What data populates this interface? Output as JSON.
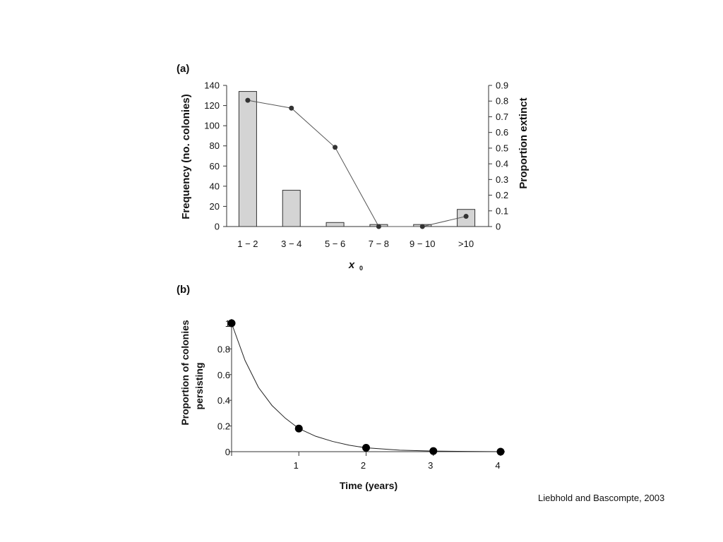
{
  "chart_data": [
    {
      "panel": "(a)",
      "type": "bar",
      "categories": [
        "1 − 2",
        "3 − 4",
        "5 − 6",
        "7 − 8",
        "9 − 10",
        ">10"
      ],
      "series": [
        {
          "name": "",
          "axis": "left",
          "type": "bar",
          "values": [
            134,
            36,
            4,
            2,
            2,
            17
          ]
        },
        {
          "name": "",
          "axis": "right",
          "type": "line",
          "values": [
            0.805,
            0.755,
            0.505,
            0.0,
            0.0,
            0.065
          ]
        }
      ],
      "xlabel": "x",
      "xlabel_sub": "0",
      "ylabel": "Frequency (no. colonies)",
      "y2label": "Proportion extinct",
      "ylim": [
        0,
        140
      ],
      "y2lim": [
        0,
        0.9
      ],
      "yticks": [
        0,
        20,
        40,
        60,
        80,
        100,
        120,
        140
      ],
      "y2ticks": [
        0,
        0.1,
        0.2,
        0.3,
        0.4,
        0.5,
        0.6,
        0.7,
        0.8,
        0.9
      ],
      "grid": false
    },
    {
      "panel": "(b)",
      "type": "scatter",
      "x": [
        0,
        1,
        2,
        3,
        4
      ],
      "y": [
        1.0,
        0.18,
        0.03,
        0.005,
        0.0
      ],
      "curve": {
        "x": [
          0,
          0.2,
          0.4,
          0.6,
          0.8,
          1,
          1.25,
          1.5,
          1.75,
          2,
          2.5,
          3,
          3.5,
          4
        ],
        "y": [
          1.0,
          0.71,
          0.5,
          0.36,
          0.26,
          0.18,
          0.12,
          0.08,
          0.05,
          0.03,
          0.012,
          0.005,
          0.002,
          0.0
        ]
      },
      "xlabel": "Time (years)",
      "ylabel": "Proportion of colonies\npersisting",
      "xlim": [
        0,
        4
      ],
      "ylim": [
        0,
        1
      ],
      "xticks": [
        1,
        2,
        3,
        4
      ],
      "yticks": [
        0,
        0.2,
        0.4,
        0.6,
        0.8,
        1
      ],
      "grid": false
    }
  ],
  "citation": "Liebhold and Bascompte, 2003"
}
